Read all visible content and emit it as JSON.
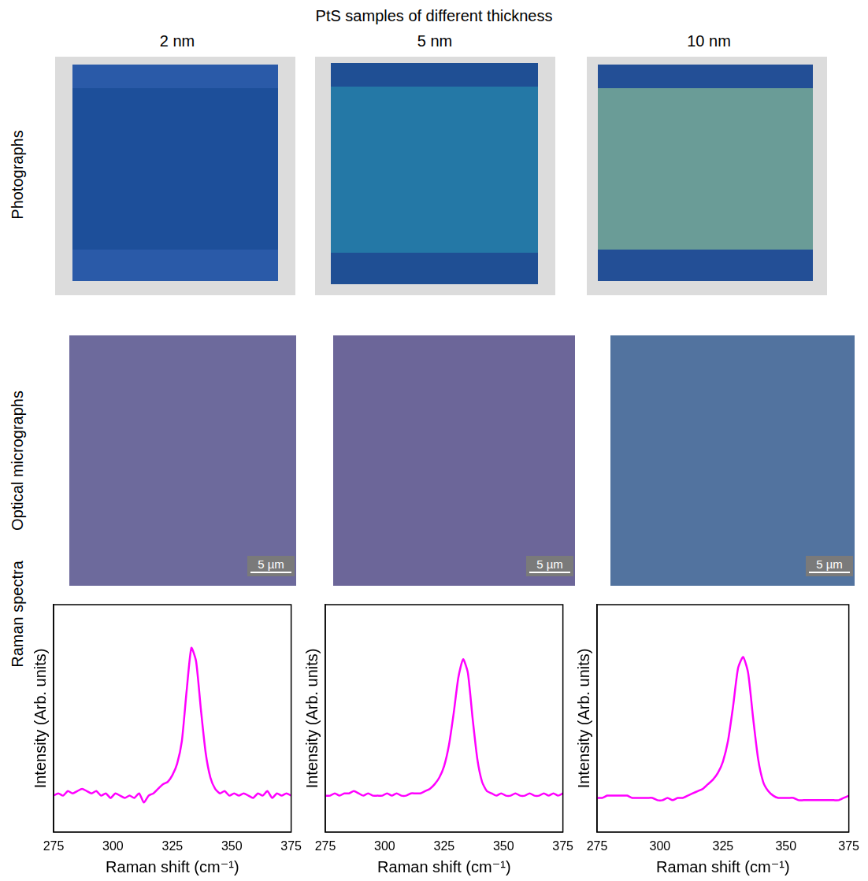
{
  "title": "PtS samples of different thickness",
  "column_labels": [
    "2 nm",
    "5 nm",
    "10 nm"
  ],
  "row_labels": [
    "Photographs",
    "Optical micrographs",
    "Raman spectra"
  ],
  "scale_bars": [
    "5 µm",
    "5 µm",
    "5 µm"
  ],
  "chart_data": [
    {
      "type": "line",
      "x_label": "Raman shift (cm⁻¹)",
      "y_label": "Intensity (Arb. units)",
      "color": "#ff00ff",
      "grid": false,
      "tick_labels": "x",
      "xlim": [
        275,
        375
      ],
      "xticks": [
        275,
        300,
        325,
        350,
        375
      ],
      "ylim": [
        0,
        1
      ],
      "x": [
        275,
        277,
        279,
        281,
        283,
        285,
        287,
        289,
        291,
        293,
        295,
        297,
        299,
        301,
        303,
        305,
        307,
        309,
        311,
        313,
        315,
        317,
        319,
        321,
        323,
        325,
        327,
        329,
        331,
        333,
        335,
        337,
        339,
        341,
        343,
        345,
        347,
        349,
        351,
        353,
        355,
        357,
        359,
        361,
        363,
        365,
        367,
        369,
        371,
        373,
        375
      ],
      "values": [
        0.16,
        0.17,
        0.16,
        0.18,
        0.17,
        0.18,
        0.19,
        0.18,
        0.17,
        0.18,
        0.16,
        0.17,
        0.15,
        0.17,
        0.16,
        0.15,
        0.16,
        0.15,
        0.17,
        0.13,
        0.16,
        0.17,
        0.19,
        0.21,
        0.22,
        0.25,
        0.3,
        0.4,
        0.62,
        0.81,
        0.75,
        0.54,
        0.35,
        0.24,
        0.19,
        0.17,
        0.18,
        0.16,
        0.17,
        0.16,
        0.17,
        0.16,
        0.15,
        0.17,
        0.16,
        0.18,
        0.15,
        0.17,
        0.16,
        0.17,
        0.16
      ]
    },
    {
      "type": "line",
      "x_label": "Raman shift (cm⁻¹)",
      "y_label": "Intensity (Arb. units)",
      "color": "#ff00ff",
      "grid": false,
      "tick_labels": "x",
      "xlim": [
        275,
        375
      ],
      "xticks": [
        275,
        300,
        325,
        350,
        375
      ],
      "ylim": [
        0,
        1
      ],
      "x": [
        275,
        277,
        279,
        281,
        283,
        285,
        287,
        289,
        291,
        293,
        295,
        297,
        299,
        301,
        303,
        305,
        307,
        309,
        311,
        313,
        315,
        317,
        319,
        321,
        323,
        325,
        327,
        329,
        331,
        333,
        335,
        337,
        339,
        341,
        343,
        345,
        347,
        349,
        351,
        353,
        355,
        357,
        359,
        361,
        363,
        365,
        367,
        369,
        371,
        373,
        375
      ],
      "values": [
        0.16,
        0.16,
        0.17,
        0.16,
        0.17,
        0.17,
        0.18,
        0.17,
        0.16,
        0.17,
        0.16,
        0.16,
        0.16,
        0.17,
        0.16,
        0.17,
        0.16,
        0.16,
        0.17,
        0.17,
        0.17,
        0.18,
        0.19,
        0.21,
        0.24,
        0.29,
        0.38,
        0.52,
        0.68,
        0.76,
        0.7,
        0.5,
        0.32,
        0.22,
        0.18,
        0.17,
        0.16,
        0.17,
        0.16,
        0.16,
        0.17,
        0.16,
        0.16,
        0.17,
        0.16,
        0.16,
        0.17,
        0.16,
        0.17,
        0.16,
        0.17
      ]
    },
    {
      "type": "line",
      "x_label": "Raman shift (cm⁻¹)",
      "y_label": "Intensity (Arb. units)",
      "color": "#ff00ff",
      "grid": false,
      "tick_labels": "x",
      "xlim": [
        275,
        375
      ],
      "xticks": [
        275,
        300,
        325,
        350,
        375
      ],
      "ylim": [
        0,
        1
      ],
      "x": [
        275,
        277,
        279,
        281,
        283,
        285,
        287,
        289,
        291,
        293,
        295,
        297,
        299,
        301,
        303,
        305,
        307,
        309,
        311,
        313,
        315,
        317,
        319,
        321,
        323,
        325,
        327,
        329,
        331,
        333,
        335,
        337,
        339,
        341,
        343,
        345,
        347,
        349,
        351,
        353,
        355,
        357,
        359,
        361,
        363,
        365,
        367,
        369,
        371,
        373,
        375
      ],
      "values": [
        0.15,
        0.15,
        0.16,
        0.16,
        0.16,
        0.16,
        0.16,
        0.15,
        0.15,
        0.15,
        0.15,
        0.15,
        0.14,
        0.14,
        0.15,
        0.14,
        0.15,
        0.15,
        0.16,
        0.17,
        0.18,
        0.19,
        0.21,
        0.23,
        0.26,
        0.31,
        0.4,
        0.55,
        0.72,
        0.77,
        0.7,
        0.5,
        0.32,
        0.22,
        0.18,
        0.16,
        0.15,
        0.15,
        0.15,
        0.15,
        0.14,
        0.14,
        0.14,
        0.14,
        0.14,
        0.14,
        0.14,
        0.14,
        0.14,
        0.15,
        0.16
      ]
    }
  ]
}
